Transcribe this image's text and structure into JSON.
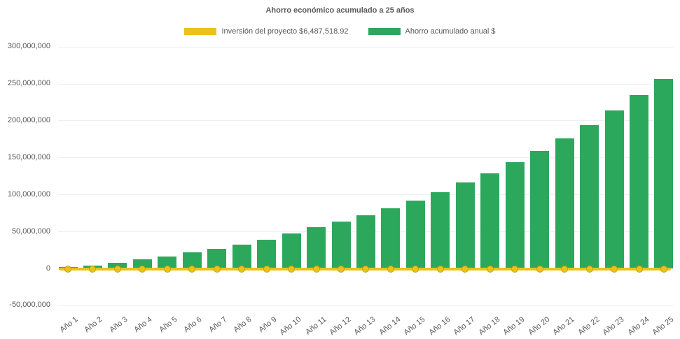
{
  "title": "Ahorro económico acumulado a 25 años",
  "colors": {
    "background": "#ffffff",
    "savings_green": "#2CA85D",
    "investment_yellow": "#E8C31A",
    "marker_border": "#C89E10",
    "text_gray": "#595959",
    "gridline": "#efefef"
  },
  "legend": {
    "items": [
      {
        "label": "Inversión del proyecto $6,487,518.92",
        "color": "#E8C31A",
        "series": "investment-line"
      },
      {
        "label": "Ahorro acumulado anual $",
        "color": "#2CA85D",
        "series": "savings-bars"
      }
    ]
  },
  "y_axis": {
    "tick_labels": [
      "300,000,000",
      "250,000,000",
      "200,000,000",
      "150,000,000",
      "100,000,000",
      "50,000,000",
      "0",
      "-50,000,000"
    ],
    "tick_values": [
      300000000,
      250000000,
      200000000,
      150000000,
      100000000,
      50000000,
      0,
      -50000000
    ]
  },
  "chart_data": {
    "type": "bar",
    "title": "Ahorro económico acumulado a 25 años",
    "categories": [
      "Año 1",
      "Año 2",
      "Año 3",
      "Año 4",
      "Año 5",
      "Año 6",
      "Año 7",
      "Año 8",
      "Año 9",
      "Año 10",
      "Año 11",
      "Año 12",
      "Año 13",
      "Año 14",
      "Año 15",
      "Año 16",
      "Año 17",
      "Año 18",
      "Año 19",
      "Año 20",
      "Año 21",
      "Año 22",
      "Año 23",
      "Año 24",
      "Año 25"
    ],
    "series": [
      {
        "name": "Ahorro acumulado anual $",
        "type": "bar",
        "color": "#2CA85D",
        "values": [
          2000000,
          4000000,
          8000000,
          12000000,
          16500000,
          21500000,
          26500000,
          32500000,
          39000000,
          47000000,
          55500000,
          63000000,
          71500000,
          81500000,
          92000000,
          103000000,
          116000000,
          129000000,
          143500000,
          159000000,
          176000000,
          194000000,
          213500000,
          234000000,
          256500000
        ]
      },
      {
        "name": "Inversión del proyecto $6,487,518.92",
        "type": "line",
        "color": "#E8C31A",
        "investment_amount_label": "$6,487,518.92",
        "values": [
          0,
          0,
          0,
          0,
          0,
          0,
          0,
          0,
          0,
          0,
          0,
          0,
          0,
          0,
          0,
          0,
          0,
          0,
          0,
          0,
          0,
          0,
          0,
          0,
          0
        ]
      }
    ],
    "xlabel": "",
    "ylabel": "",
    "ylim": [
      -50000000,
      300000000
    ],
    "ytick_step": 50000000,
    "grid": true,
    "legend_position": "top-center"
  }
}
